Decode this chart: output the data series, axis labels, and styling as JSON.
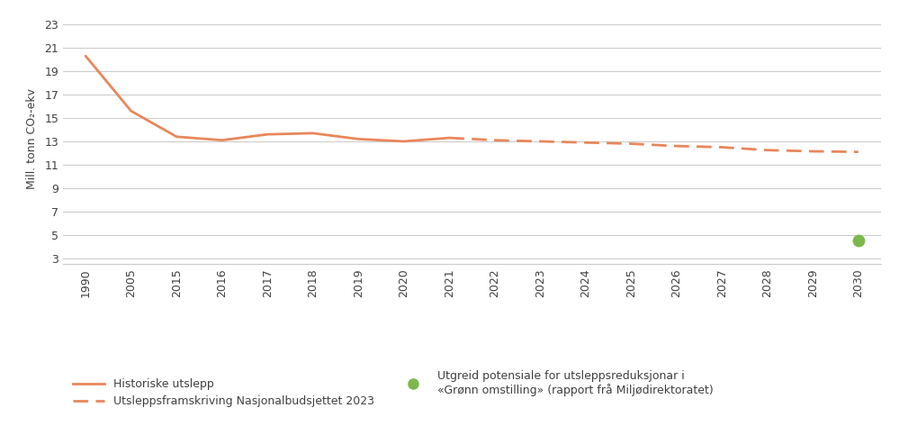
{
  "all_xtick_labels": [
    "1990",
    "2005",
    "2015",
    "2016",
    "2017",
    "2018",
    "2019",
    "2020",
    "2021",
    "2022",
    "2023",
    "2024",
    "2025",
    "2026",
    "2027",
    "2028",
    "2029",
    "2030"
  ],
  "historical_indices": [
    0,
    1,
    2,
    3,
    4,
    5,
    6,
    7,
    8
  ],
  "historical_values": [
    20.3,
    15.6,
    13.4,
    13.1,
    13.6,
    13.7,
    13.2,
    13.0,
    13.3
  ],
  "forecast_indices": [
    8,
    9,
    10,
    11,
    12,
    13,
    14,
    15,
    16,
    17
  ],
  "forecast_values": [
    13.3,
    13.1,
    13.0,
    12.9,
    12.8,
    12.6,
    12.5,
    12.25,
    12.15,
    12.1
  ],
  "green_dot_index": 17,
  "green_dot_value": 4.5,
  "line_color": "#E8875A",
  "dot_color": "#7DB84D",
  "background_color": "#FFFFFF",
  "grid_color": "#CCCCCC",
  "yticks": [
    3,
    5,
    7,
    9,
    11,
    13,
    15,
    17,
    19,
    21,
    23
  ],
  "ylabel": "Mill. tonn CO₂-ekv",
  "legend_solid": "Historiske utslepp",
  "legend_dashed": "Utsleppsframskriving Nasjonalbudsjettet 2023",
  "legend_dot": "Utgreid potensiale for utsleppsreduksjonar i\n«Grønn omstilling» (rapport frå Miljødirektoratet)",
  "ylim": [
    2.5,
    24
  ],
  "xlim": [
    -0.5,
    17.5
  ],
  "text_color": "#404040",
  "tick_fontsize": 9,
  "ylabel_fontsize": 9
}
